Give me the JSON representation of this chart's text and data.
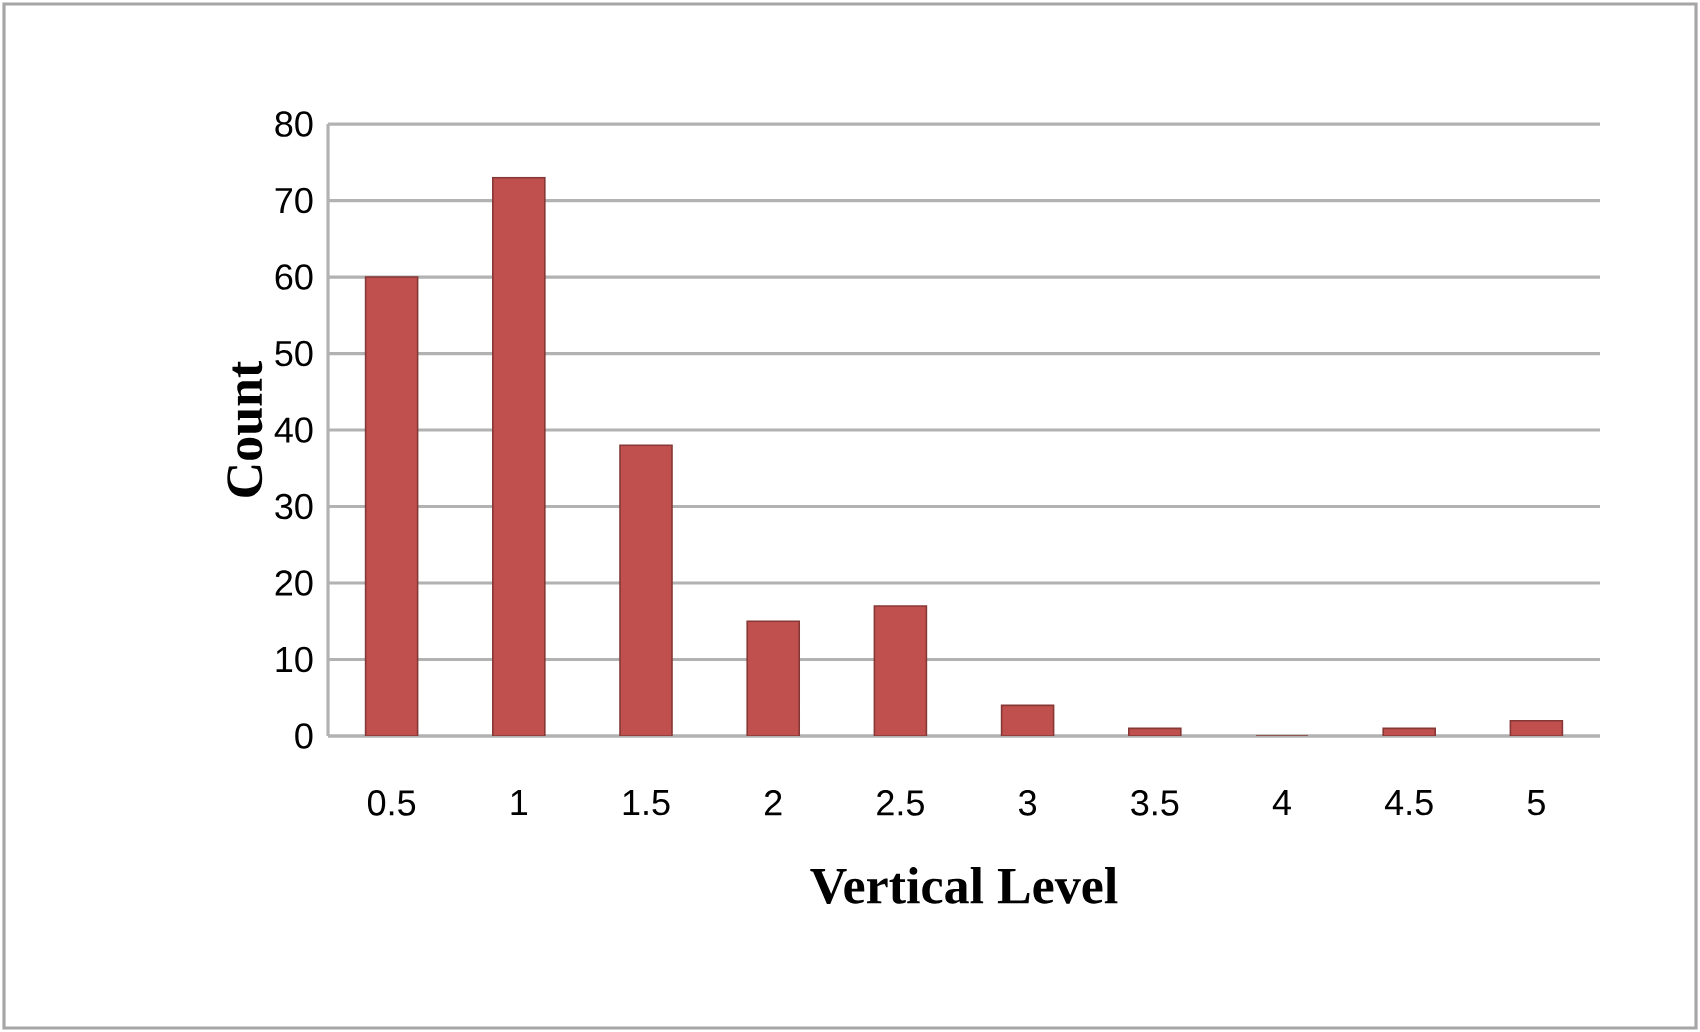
{
  "chart_data": {
    "type": "bar",
    "xlabel": "Vertical Level",
    "ylabel": "Count",
    "categories": [
      "0.5",
      "1",
      "1.5",
      "2",
      "2.5",
      "3",
      "3.5",
      "4",
      "4.5",
      "5"
    ],
    "values": [
      60,
      73,
      38,
      15,
      17,
      4,
      1,
      0,
      1,
      2
    ],
    "color": "#c0504d",
    "ylim": [
      0,
      80
    ],
    "yticks": [
      0,
      10,
      20,
      30,
      40,
      50,
      60,
      70,
      80
    ],
    "grid": "y"
  }
}
